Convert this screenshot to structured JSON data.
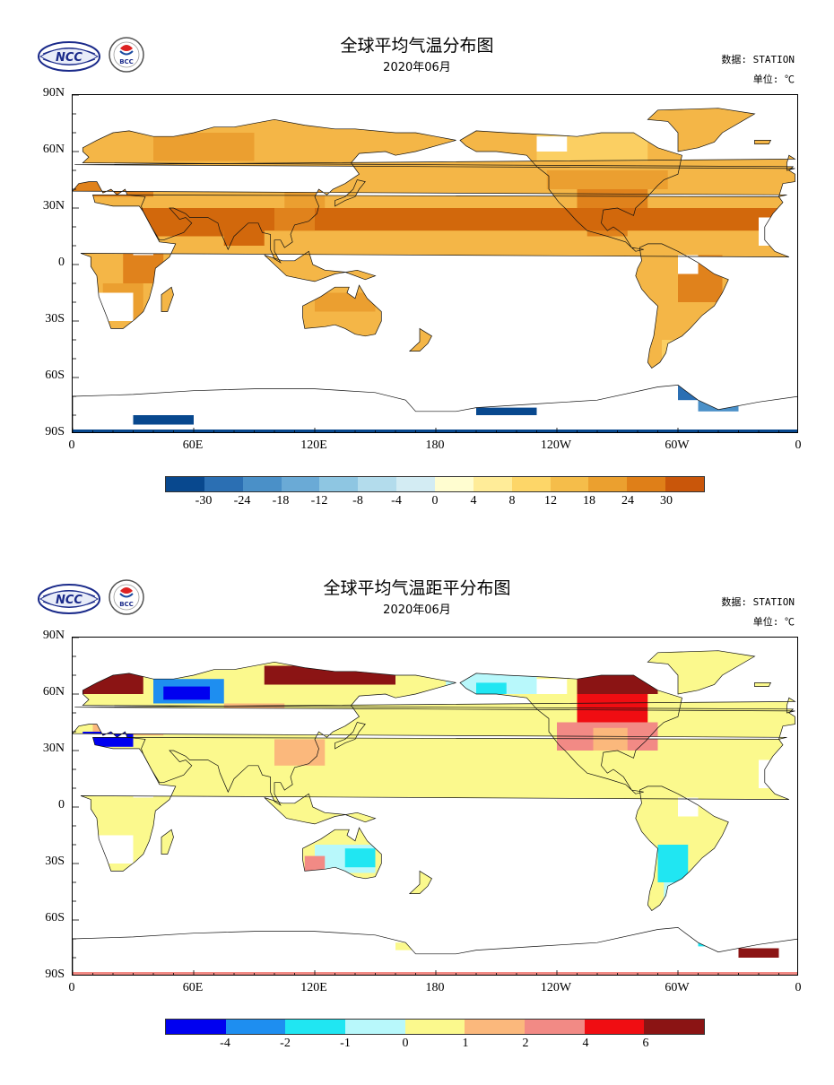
{
  "panels": [
    {
      "title": "全球平均气温分布图",
      "subtitle": "2020年06月",
      "source": "数据: STATION",
      "unit": "单位: ℃",
      "lat_labels": [
        "90N",
        "60N",
        "30N",
        "0",
        "30S",
        "60S",
        "90S"
      ],
      "lon_labels": [
        "0",
        "60E",
        "120E",
        "180",
        "120W",
        "60W",
        "0"
      ],
      "colorbar": {
        "colors": [
          "#08488e",
          "#2b6fb3",
          "#4a90c8",
          "#6aaad6",
          "#8ec6e2",
          "#b3dcec",
          "#d3ecf3",
          "#fffdd0",
          "#ffec98",
          "#fdd668",
          "#f5bd4a",
          "#eba02f",
          "#df7f18",
          "#c9560a"
        ],
        "ticks": [
          "-30",
          "-24",
          "-18",
          "-12",
          "-8",
          "-4",
          "0",
          "4",
          "8",
          "12",
          "18",
          "24",
          "30"
        ]
      },
      "field_colors": {
        "warm": [
          "#fbcf62",
          "#f4b647",
          "#eb9f30",
          "#e0821c",
          "#d2680c"
        ],
        "cold": [
          "#2b6fb3",
          "#4a90c8",
          "#08488e"
        ]
      }
    },
    {
      "title": "全球平均气温距平分布图",
      "subtitle": "2020年06月",
      "source": "数据: STATION",
      "unit": "单位: ℃",
      "lat_labels": [
        "90N",
        "60N",
        "30N",
        "0",
        "30S",
        "60S",
        "90S"
      ],
      "lon_labels": [
        "0",
        "60E",
        "120E",
        "180",
        "120W",
        "60W",
        "0"
      ],
      "colorbar": {
        "colors": [
          "#0000f0",
          "#1e8ef0",
          "#20e6f2",
          "#b8f8fb",
          "#fbf98d",
          "#fbb87c",
          "#f28a85",
          "#f00d12",
          "#8b1414"
        ],
        "ticks": [
          "-4",
          "-2",
          "-1",
          "0",
          "1",
          "2",
          "4",
          "6"
        ]
      },
      "field_colors": {
        "warm": [
          "#fbf98d",
          "#fbb87c",
          "#f28a85",
          "#f00d12",
          "#8b1414"
        ],
        "cold": [
          "#b8f8fb",
          "#20e6f2",
          "#1e8ef0",
          "#0000f0"
        ]
      }
    }
  ]
}
